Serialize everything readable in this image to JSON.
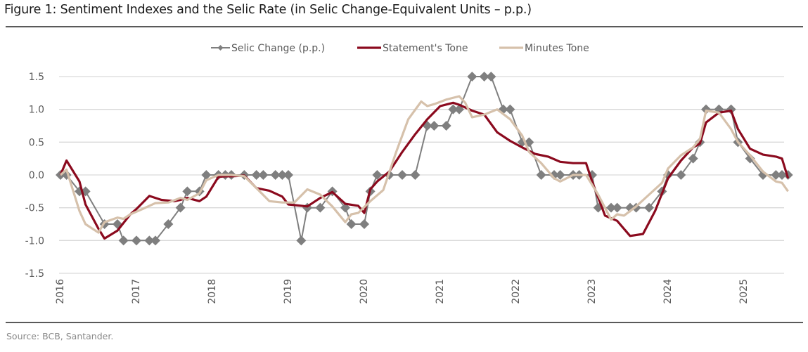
{
  "header": {
    "title": "Figure 1: Sentiment Indexes and the Selic Rate (in Selic Change-Equivalent Units – p.p.)"
  },
  "footer": {
    "source": "Source: BCB, Santander."
  },
  "chart_data": {
    "type": "line",
    "title": "Figure 1: Sentiment Indexes and the Selic Rate (in Selic Change-Equivalent Units – p.p.)",
    "xlabel": "",
    "ylabel": "",
    "ylim": [
      -1.5,
      1.5
    ],
    "xlim": [
      2016,
      2025.65
    ],
    "yticks": [
      1.5,
      1.0,
      0.5,
      0.0,
      -0.5,
      -1.0,
      -1.5
    ],
    "ytick_labels": [
      "1.5",
      "1.0",
      "0.5",
      "0.0",
      "-0.5",
      "-1.0",
      "-1.5"
    ],
    "xticks": [
      2016,
      2017,
      2018,
      2019,
      2020,
      2021,
      2022,
      2023,
      2024,
      2025
    ],
    "xtick_labels": [
      "2016",
      "2017",
      "2018",
      "2019",
      "2020",
      "2021",
      "2022",
      "2023",
      "2024",
      "2025"
    ],
    "grid": "horizontal",
    "legend_position": "top-center",
    "series": [
      {
        "name": "Selic Change (p.p.)",
        "color": "#7f7f7f",
        "marker": "diamond",
        "x": [
          2016.0,
          2016.08,
          2016.25,
          2016.33,
          2016.58,
          2016.75,
          2016.83,
          2017.0,
          2017.17,
          2017.25,
          2017.42,
          2017.58,
          2017.67,
          2017.83,
          2017.92,
          2018.08,
          2018.17,
          2018.25,
          2018.42,
          2018.58,
          2018.67,
          2018.83,
          2018.92,
          2019.0,
          2019.17,
          2019.25,
          2019.42,
          2019.58,
          2019.75,
          2019.83,
          2020.0,
          2020.08,
          2020.17,
          2020.33,
          2020.5,
          2020.67,
          2020.83,
          2020.92,
          2021.08,
          2021.17,
          2021.25,
          2021.42,
          2021.58,
          2021.67,
          2021.83,
          2021.92,
          2022.08,
          2022.17,
          2022.33,
          2022.5,
          2022.58,
          2022.75,
          2022.83,
          2023.0,
          2023.08,
          2023.25,
          2023.33,
          2023.5,
          2023.58,
          2023.75,
          2023.92,
          2024.0,
          2024.17,
          2024.33,
          2024.42,
          2024.5,
          2024.67,
          2024.83,
          2024.92,
          2025.08,
          2025.25,
          2025.42,
          2025.5,
          2025.58
        ],
        "values": [
          0.0,
          0.0,
          -0.25,
          -0.25,
          -0.75,
          -0.75,
          -1.0,
          -1.0,
          -1.0,
          -1.0,
          -0.75,
          -0.5,
          -0.25,
          -0.25,
          0.0,
          0.0,
          0.0,
          0.0,
          0.0,
          0.0,
          0.0,
          0.0,
          0.0,
          0.0,
          -1.0,
          -0.5,
          -0.5,
          -0.25,
          -0.5,
          -0.75,
          -0.75,
          -0.25,
          0.0,
          0.0,
          0.0,
          0.0,
          0.75,
          0.75,
          0.75,
          1.0,
          1.0,
          1.5,
          1.5,
          1.5,
          1.0,
          1.0,
          0.5,
          0.5,
          0.0,
          0.0,
          0.0,
          0.0,
          0.0,
          0.0,
          -0.5,
          -0.5,
          -0.5,
          -0.5,
          -0.5,
          -0.5,
          -0.25,
          0.0,
          0.0,
          0.25,
          0.5,
          1.0,
          1.0,
          1.0,
          0.5,
          0.25,
          0.0,
          0.0,
          0.0,
          0.0
        ]
      },
      {
        "name": "Statement's Tone",
        "color": "#8b0a1e",
        "marker": "none",
        "x": [
          2016.0,
          2016.08,
          2016.25,
          2016.33,
          2016.5,
          2016.58,
          2016.75,
          2016.92,
          2017.0,
          2017.17,
          2017.33,
          2017.5,
          2017.58,
          2017.67,
          2017.83,
          2017.92,
          2018.08,
          2018.17,
          2018.25,
          2018.42,
          2018.58,
          2018.75,
          2018.92,
          2019.0,
          2019.08,
          2019.25,
          2019.42,
          2019.58,
          2019.75,
          2019.92,
          2020.0,
          2020.08,
          2020.17,
          2020.33,
          2020.5,
          2020.67,
          2020.83,
          2021.0,
          2021.17,
          2021.25,
          2021.42,
          2021.58,
          2021.75,
          2021.92,
          2022.08,
          2022.25,
          2022.42,
          2022.58,
          2022.75,
          2022.92,
          2023.0,
          2023.17,
          2023.33,
          2023.5,
          2023.67,
          2023.83,
          2024.0,
          2024.17,
          2024.33,
          2024.42,
          2024.5,
          2024.67,
          2024.83,
          2024.92,
          2025.08,
          2025.25,
          2025.42,
          2025.5,
          2025.58
        ],
        "values": [
          0.0,
          0.22,
          -0.1,
          -0.45,
          -0.82,
          -0.97,
          -0.85,
          -0.6,
          -0.52,
          -0.32,
          -0.38,
          -0.4,
          -0.38,
          -0.35,
          -0.4,
          -0.33,
          -0.03,
          -0.02,
          -0.02,
          -0.01,
          -0.2,
          -0.24,
          -0.33,
          -0.45,
          -0.46,
          -0.48,
          -0.35,
          -0.26,
          -0.44,
          -0.47,
          -0.58,
          -0.22,
          -0.1,
          0.05,
          0.35,
          0.62,
          0.85,
          1.05,
          1.1,
          1.07,
          0.98,
          0.92,
          0.65,
          0.52,
          0.42,
          0.32,
          0.28,
          0.2,
          0.18,
          0.18,
          -0.1,
          -0.62,
          -0.7,
          -0.93,
          -0.9,
          -0.55,
          -0.05,
          0.22,
          0.42,
          0.48,
          0.8,
          0.95,
          0.98,
          0.7,
          0.4,
          0.31,
          0.28,
          0.25,
          -0.05
        ]
      },
      {
        "name": "Minutes Tone",
        "color": "#d6c1ab",
        "marker": "none",
        "x": [
          2016.0,
          2016.08,
          2016.25,
          2016.33,
          2016.5,
          2016.58,
          2016.75,
          2016.83,
          2016.92,
          2017.08,
          2017.25,
          2017.42,
          2017.58,
          2017.67,
          2017.83,
          2017.92,
          2018.08,
          2018.25,
          2018.42,
          2018.58,
          2018.75,
          2018.92,
          2019.08,
          2019.25,
          2019.42,
          2019.58,
          2019.75,
          2019.83,
          2019.92,
          2020.08,
          2020.25,
          2020.42,
          2020.58,
          2020.75,
          2020.83,
          2020.92,
          2021.08,
          2021.25,
          2021.33,
          2021.42,
          2021.58,
          2021.75,
          2021.92,
          2022.08,
          2022.17,
          2022.33,
          2022.5,
          2022.58,
          2022.75,
          2022.83,
          2022.92,
          2023.08,
          2023.25,
          2023.33,
          2023.42,
          2023.58,
          2023.75,
          2023.92,
          2024.0,
          2024.17,
          2024.33,
          2024.42,
          2024.5,
          2024.67,
          2024.83,
          2024.92,
          2025.08,
          2025.25,
          2025.42,
          2025.5,
          2025.58
        ],
        "values": [
          0.0,
          0.08,
          -0.55,
          -0.75,
          -0.88,
          -0.72,
          -0.65,
          -0.67,
          -0.6,
          -0.52,
          -0.43,
          -0.42,
          -0.35,
          -0.38,
          -0.28,
          -0.08,
          0.0,
          0.0,
          -0.02,
          -0.2,
          -0.4,
          -0.42,
          -0.42,
          -0.22,
          -0.3,
          -0.48,
          -0.72,
          -0.6,
          -0.58,
          -0.4,
          -0.23,
          0.35,
          0.85,
          1.12,
          1.05,
          1.08,
          1.15,
          1.2,
          1.1,
          0.88,
          0.92,
          1.0,
          0.85,
          0.6,
          0.35,
          0.18,
          -0.05,
          -0.1,
          0.0,
          0.0,
          0.0,
          -0.3,
          -0.68,
          -0.6,
          -0.62,
          -0.48,
          -0.3,
          -0.12,
          0.1,
          0.3,
          0.42,
          0.55,
          0.98,
          0.95,
          0.7,
          0.5,
          0.3,
          0.05,
          -0.1,
          -0.12,
          -0.25
        ]
      }
    ]
  }
}
